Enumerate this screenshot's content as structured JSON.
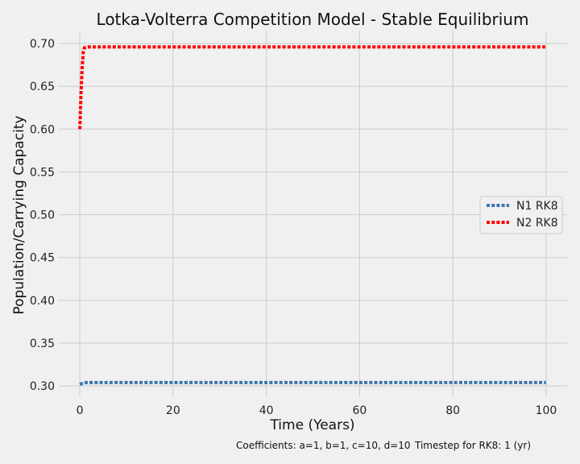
{
  "chart_data": {
    "type": "line",
    "title": "Lotka-Volterra Competition Model - Stable Equilibrium",
    "xlabel": "Time (Years)",
    "ylabel": "Population/Carrying Capacity",
    "xlim": [
      -4.5,
      104.5
    ],
    "ylim": [
      0.287,
      0.715
    ],
    "x_ticks": [
      0,
      20,
      40,
      60,
      80,
      100
    ],
    "y_ticks": [
      0.3,
      0.35,
      0.4,
      0.45,
      0.5,
      0.55,
      0.6,
      0.65,
      0.7
    ],
    "grid": true,
    "legend_position": "center-right",
    "series": [
      {
        "name": "N1 RK8",
        "color": "#3b75af",
        "style": "dotted",
        "x": [
          0,
          0.5,
          1,
          2,
          5,
          10,
          20,
          30,
          40,
          50,
          60,
          70,
          80,
          90,
          100
        ],
        "y": [
          0.302,
          0.303,
          0.304,
          0.304,
          0.304,
          0.304,
          0.304,
          0.304,
          0.304,
          0.304,
          0.304,
          0.304,
          0.304,
          0.304,
          0.304
        ]
      },
      {
        "name": "N2 RK8",
        "color": "#ff0000",
        "style": "dotted",
        "x": [
          0,
          0.25,
          0.5,
          0.75,
          1,
          2,
          5,
          10,
          20,
          30,
          40,
          50,
          60,
          70,
          80,
          90,
          100
        ],
        "y": [
          0.6,
          0.64,
          0.67,
          0.69,
          0.695,
          0.696,
          0.696,
          0.696,
          0.696,
          0.696,
          0.696,
          0.696,
          0.696,
          0.696,
          0.696,
          0.696,
          0.696
        ]
      }
    ]
  },
  "footnote": {
    "coefficients": "Coefficients: a=1, b=1, c=10, d=10",
    "timestep": "Timestep for RK8: 1 (yr)"
  }
}
